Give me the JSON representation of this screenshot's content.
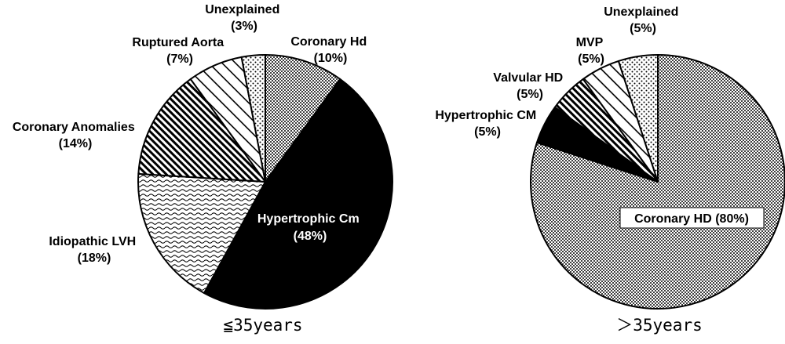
{
  "chart_data": [
    {
      "type": "pie",
      "caption": "≦35years",
      "slices": [
        {
          "label": "Coronary Hd",
          "pct_text": "(10%)",
          "value": 10,
          "pattern": "dots-dense"
        },
        {
          "label": "Hypertrophic Cm",
          "pct_text": "(48%)",
          "value": 48,
          "pattern": "solid-black"
        },
        {
          "label": "Idiopathic LVH",
          "pct_text": "(18%)",
          "value": 18,
          "pattern": "waves"
        },
        {
          "label": "Coronary Anomalies",
          "pct_text": "(14%)",
          "value": 14,
          "pattern": "diagonal-dense"
        },
        {
          "label": "Ruptured Aorta",
          "pct_text": "(7%)",
          "value": 7,
          "pattern": "diagonal-sparse"
        },
        {
          "label": "Unexplained",
          "pct_text": "(3%)",
          "value": 3,
          "pattern": "dots-sparse"
        }
      ]
    },
    {
      "type": "pie",
      "caption": "＞35years",
      "slices": [
        {
          "label": "Coronary HD",
          "pct_text": "(80%)",
          "value": 80,
          "pattern": "dots-dense"
        },
        {
          "label": "Hypertrophic CM",
          "pct_text": "(5%)",
          "value": 5,
          "pattern": "solid-black"
        },
        {
          "label": "Valvular HD",
          "pct_text": "(5%)",
          "value": 5,
          "pattern": "diagonal-dense"
        },
        {
          "label": "MVP",
          "pct_text": "(5%)",
          "value": 5,
          "pattern": "diagonal-sparse"
        },
        {
          "label": "Unexplained",
          "pct_text": "(5%)",
          "value": 5,
          "pattern": "dots-sparse"
        }
      ]
    }
  ]
}
